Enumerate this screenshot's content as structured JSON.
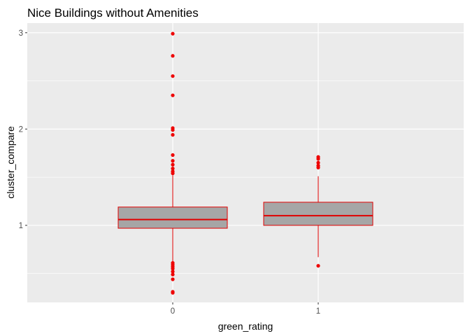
{
  "chart_data": {
    "type": "boxplot",
    "title": "Nice Buildings without Amenities",
    "xlabel": "green_rating",
    "ylabel": "cluster_compare",
    "categories": [
      "0",
      "1"
    ],
    "ylim": [
      0.2,
      3.1
    ],
    "yticks": [
      1,
      2,
      3
    ],
    "grid": true,
    "panel_color": "#ebebeb",
    "grid_color": "#ffffff",
    "box_fill": "#a6a6a6",
    "box_stroke": "#e00000",
    "outlier_color": "#ee0000",
    "boxes": [
      {
        "category": "0",
        "q1": 0.97,
        "median": 1.06,
        "q3": 1.19,
        "whisker_low": 0.62,
        "whisker_high": 1.52,
        "outliers": [
          2.99,
          2.76,
          2.55,
          2.35,
          2.01,
          1.99,
          1.94,
          1.73,
          1.67,
          1.63,
          1.59,
          1.56,
          1.54,
          0.61,
          0.59,
          0.57,
          0.55,
          0.52,
          0.49,
          0.44,
          0.31,
          0.3
        ]
      },
      {
        "category": "1",
        "q1": 1.0,
        "median": 1.1,
        "q3": 1.24,
        "whisker_low": 0.67,
        "whisker_high": 1.51,
        "outliers": [
          1.71,
          1.69,
          1.65,
          1.62,
          1.6,
          0.58
        ]
      }
    ]
  }
}
